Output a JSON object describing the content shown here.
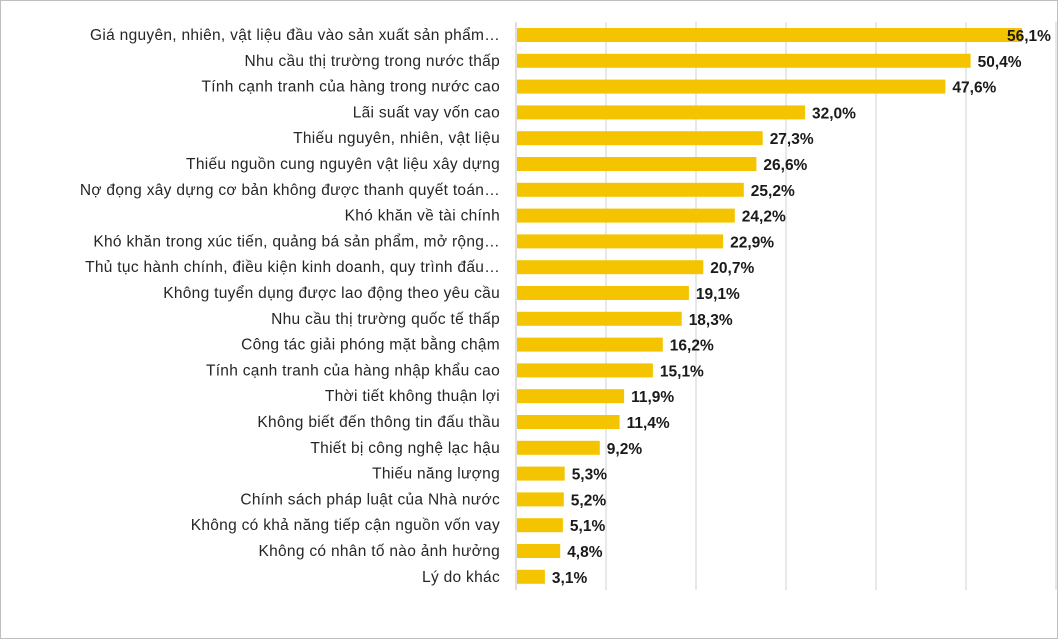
{
  "chart_data": {
    "type": "bar",
    "orientation": "horizontal",
    "categories": [
      "Giá nguyên, nhiên, vật liệu đầu vào sản xuất sản phẩm…",
      "Nhu cầu thị trường trong nước thấp",
      "Tính cạnh tranh của hàng trong nước cao",
      "Lãi suất vay vốn cao",
      "Thiếu nguyên, nhiên, vật liệu",
      "Thiếu nguồn cung nguyên vật liệu xây dựng",
      "Nợ đọng xây dựng cơ bản không được thanh quyết toán…",
      "Khó khăn về tài chính",
      "Khó khăn trong xúc tiến, quảng bá sản phẩm, mở rộng…",
      "Thủ tục hành chính, điều kiện kinh doanh, quy trình đấu…",
      "Không tuyển dụng được lao động theo yêu cầu",
      "Nhu cầu thị trường quốc tế thấp",
      "Công tác giải phóng mặt bằng chậm",
      "Tính cạnh tranh của hàng nhập khẩu cao",
      "Thời tiết không thuận lợi",
      "Không biết đến thông tin đấu thầu",
      "Thiết bị công nghệ lạc hậu",
      "Thiếu năng lượng",
      "Chính sách pháp luật của Nhà nước",
      "Không có khả năng tiếp cận nguồn vốn vay",
      "Không có nhân tố nào ảnh hưởng",
      "Lý do khác"
    ],
    "values": [
      56.1,
      50.4,
      47.6,
      32.0,
      27.3,
      26.6,
      25.2,
      24.2,
      22.9,
      20.7,
      19.1,
      18.3,
      16.2,
      15.1,
      11.9,
      11.4,
      9.2,
      5.3,
      5.2,
      5.1,
      4.8,
      3.1
    ],
    "data_labels": [
      "56,1%",
      "50,4%",
      "47,6%",
      "32,0%",
      "27,3%",
      "26,6%",
      "25,2%",
      "24,2%",
      "22,9%",
      "20,7%",
      "19,1%",
      "18,3%",
      "16,2%",
      "15,1%",
      "11,9%",
      "11,4%",
      "9,2%",
      "5,3%",
      "5,2%",
      "5,1%",
      "4,8%",
      "3,1%"
    ],
    "title": "",
    "xlabel": "",
    "ylabel": "",
    "xlim": [
      0,
      60
    ],
    "grid": true,
    "legend": "none",
    "bar_color": "#F5C400"
  }
}
